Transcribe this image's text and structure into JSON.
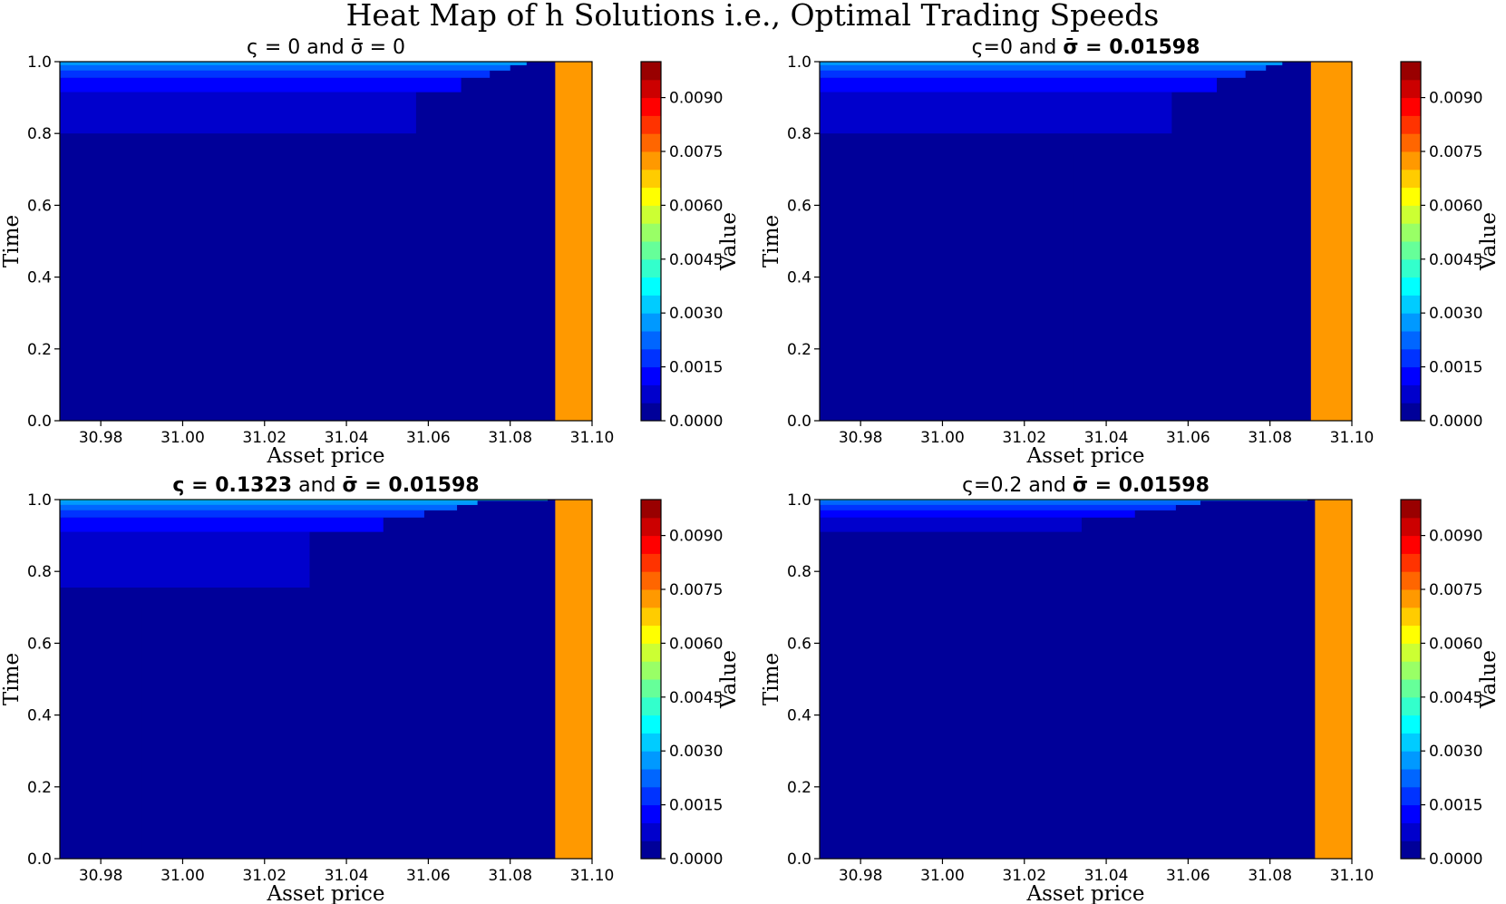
{
  "figure": {
    "title": "Heat Map of h Solutions i.e., Optimal Trading Speeds"
  },
  "chart_data": [
    {
      "type": "heatmap",
      "title_parts": [
        {
          "text": "ς = 0 and σ̄ = 0",
          "bold": false
        }
      ],
      "xlabel": "Asset price",
      "ylabel": "Time",
      "colorbar_label": "Value",
      "xlim": [
        30.97,
        31.1
      ],
      "ylim": [
        0,
        1
      ],
      "xticks": [
        "30.98",
        "31.00",
        "31.02",
        "31.04",
        "31.06",
        "31.08",
        "31.10"
      ],
      "yticks": [
        "0.0",
        "0.2",
        "0.4",
        "0.6",
        "0.8",
        "1.0"
      ],
      "colorbar_ticks": [
        "0.0000",
        "0.0015",
        "0.0030",
        "0.0045",
        "0.0060",
        "0.0075",
        "0.0090"
      ],
      "colorbar_range": [
        0,
        0.01
      ],
      "colormap": "jet",
      "contour_x_boundaries": [
        31.033,
        31.061,
        31.072,
        31.079,
        31.084,
        31.088,
        31.091,
        31.093,
        31.095,
        31.097,
        31.098,
        31.099,
        31.1
      ],
      "contour_time_boundaries": [
        0.8,
        0.915,
        0.955,
        0.975,
        0.99,
        1.0
      ]
    },
    {
      "type": "heatmap",
      "title_parts": [
        {
          "text": "ς=0 and ",
          "bold": false
        },
        {
          "text": "σ̄ = 0.01598",
          "bold": true
        }
      ],
      "xlabel": "Asset price",
      "ylabel": "Time",
      "colorbar_label": "Value",
      "xlim": [
        30.97,
        31.1
      ],
      "ylim": [
        0,
        1
      ],
      "xticks": [
        "30.98",
        "31.00",
        "31.02",
        "31.04",
        "31.06",
        "31.08",
        "31.10"
      ],
      "yticks": [
        "0.0",
        "0.2",
        "0.4",
        "0.6",
        "0.8",
        "1.0"
      ],
      "colorbar_ticks": [
        "0.0000",
        "0.0015",
        "0.0030",
        "0.0045",
        "0.0060",
        "0.0075",
        "0.0090"
      ],
      "colorbar_range": [
        0,
        0.01
      ],
      "colormap": "jet",
      "contour_x_boundaries": [
        31.032,
        31.06,
        31.071,
        31.078,
        31.083,
        31.087,
        31.09,
        31.092,
        31.094,
        31.096,
        31.098,
        31.099,
        31.1
      ],
      "contour_time_boundaries": [
        0.8,
        0.915,
        0.955,
        0.975,
        0.99,
        1.0
      ]
    },
    {
      "type": "heatmap",
      "title_parts": [
        {
          "text": "ς = 0.1323",
          "bold": true
        },
        {
          "text": " and ",
          "bold": false
        },
        {
          "text": "σ̄ = 0.01598",
          "bold": true
        }
      ],
      "xlabel": "Asset price",
      "ylabel": "Time",
      "colorbar_label": "Value",
      "xlim": [
        30.97,
        31.1
      ],
      "ylim": [
        0,
        1
      ],
      "xticks": [
        "30.98",
        "31.00",
        "31.02",
        "31.04",
        "31.06",
        "31.08",
        "31.10"
      ],
      "yticks": [
        "0.0",
        "0.2",
        "0.4",
        "0.6",
        "0.8",
        "1.0"
      ],
      "colorbar_ticks": [
        "0.0000",
        "0.0015",
        "0.0030",
        "0.0045",
        "0.0060",
        "0.0075",
        "0.0090"
      ],
      "colorbar_range": [
        0,
        0.01
      ],
      "colormap": "jet",
      "contour_x_boundaries": [
        30.99,
        31.035,
        31.053,
        31.063,
        31.071,
        31.076,
        31.081,
        31.085,
        31.088,
        31.091,
        31.093,
        31.095,
        31.097,
        31.098,
        31.099,
        31.1
      ],
      "contour_time_boundaries": [
        0.755,
        0.91,
        0.95,
        0.97,
        0.985,
        1.0
      ]
    },
    {
      "type": "heatmap",
      "title_parts": [
        {
          "text": "ς=0.2 and ",
          "bold": false
        },
        {
          "text": "σ̄ = 0.01598",
          "bold": true
        }
      ],
      "xlabel": "Asset price",
      "ylabel": "Time",
      "colorbar_label": "Value",
      "xlim": [
        30.97,
        31.1
      ],
      "ylim": [
        0,
        1
      ],
      "xticks": [
        "30.98",
        "31.00",
        "31.02",
        "31.04",
        "31.06",
        "31.08",
        "31.10"
      ],
      "yticks": [
        "0.0",
        "0.2",
        "0.4",
        "0.6",
        "0.8",
        "1.0"
      ],
      "colorbar_ticks": [
        "0.0000",
        "0.0015",
        "0.0030",
        "0.0045",
        "0.0060",
        "0.0075",
        "0.0090"
      ],
      "colorbar_range": [
        0,
        0.01
      ],
      "colormap": "jet",
      "contour_x_boundaries": [
        31.014,
        31.038,
        31.051,
        31.061,
        31.067,
        31.073,
        31.078,
        31.082,
        31.085,
        31.088,
        31.091,
        31.093,
        31.095,
        31.096,
        31.098,
        31.099,
        31.1
      ],
      "contour_time_boundaries": [
        0.91,
        0.95,
        0.97,
        0.985,
        1.0
      ]
    }
  ]
}
